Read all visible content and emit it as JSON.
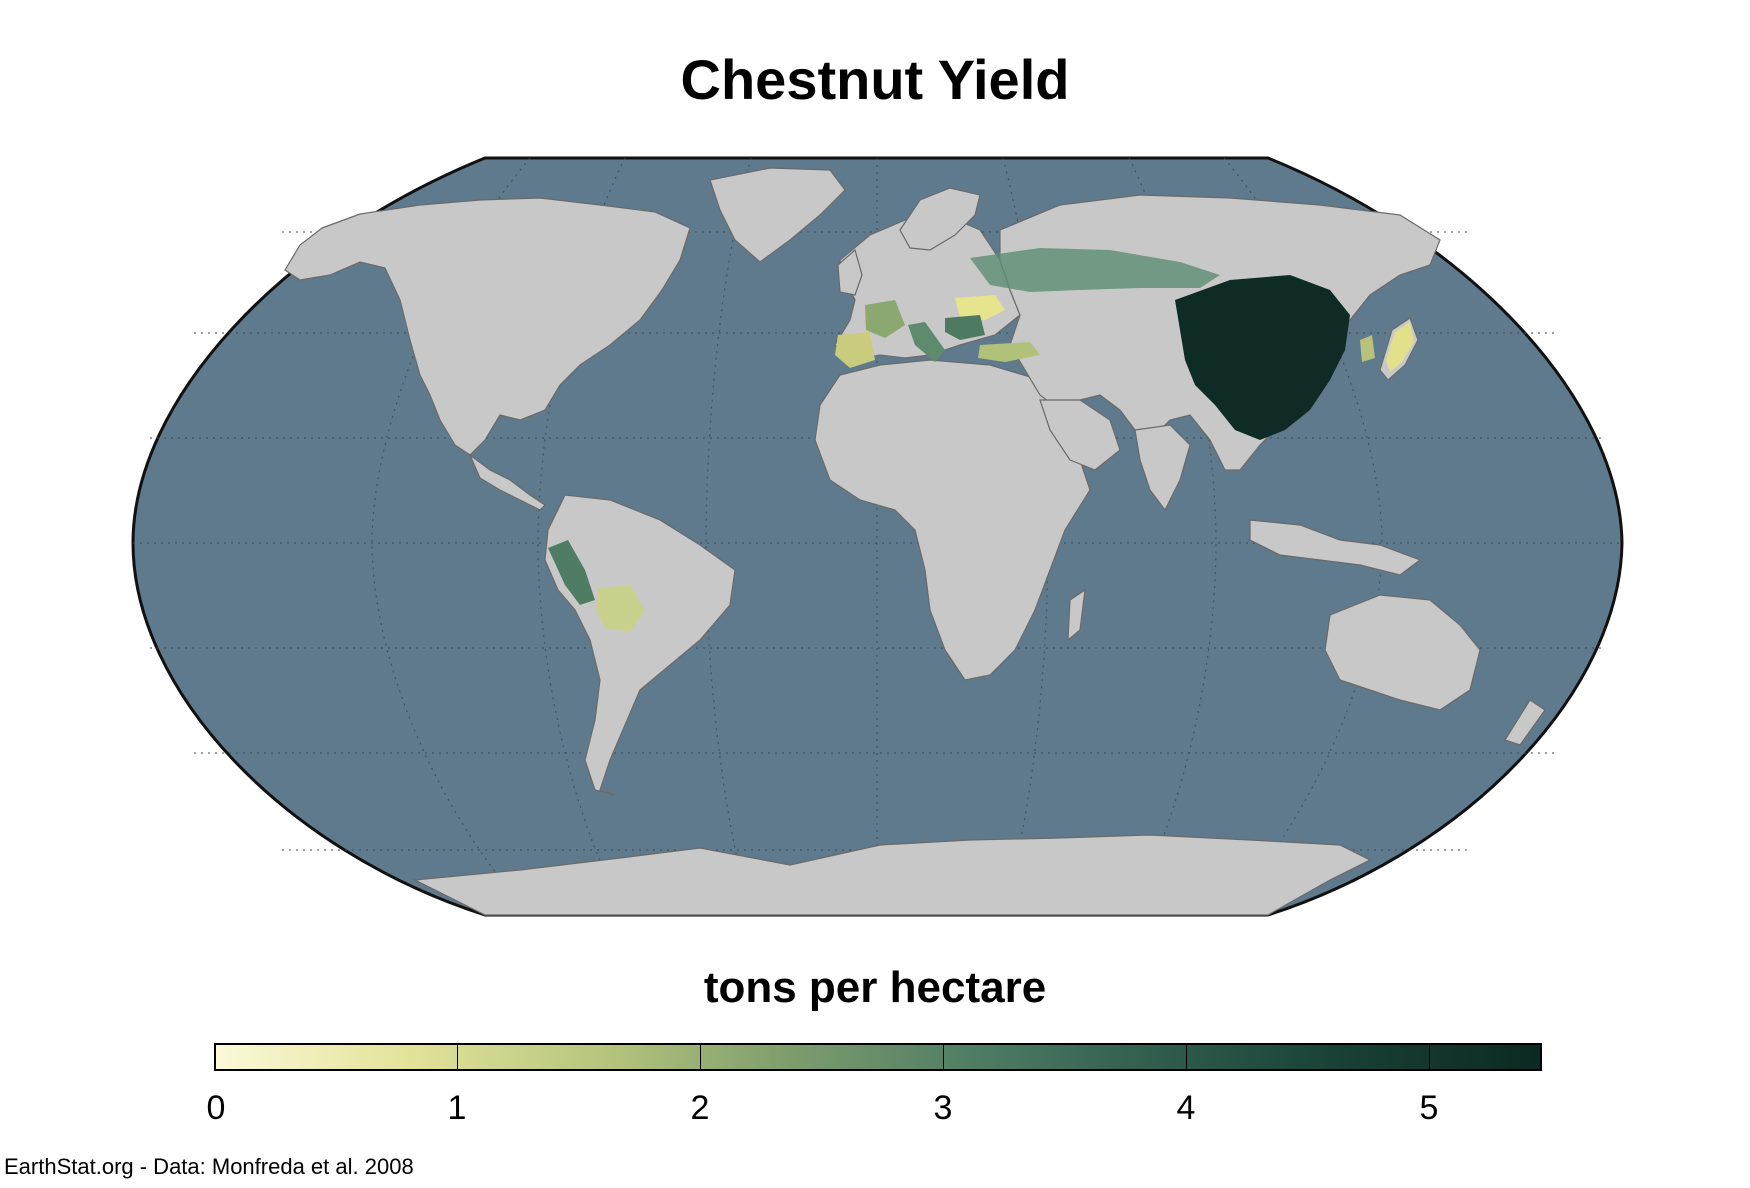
{
  "title": "Chestnut Yield",
  "legend": {
    "title": "tons per hectare",
    "ticks": [
      "0",
      "1",
      "2",
      "3",
      "4",
      "5"
    ],
    "min": 0,
    "max": 5.45,
    "colors": [
      "#fbf9d8",
      "#e4e39a",
      "#b8c77e",
      "#7f9e6d",
      "#4f7d64",
      "#2f5c4c",
      "#183f35",
      "#0c2924"
    ]
  },
  "credit": "EarthStat.org - Data: Monfreda et al. 2008",
  "map": {
    "projection": "Robinson",
    "ocean_color": "#5f7a8c",
    "land_color": "#c8c8c8",
    "graticule": true
  }
}
